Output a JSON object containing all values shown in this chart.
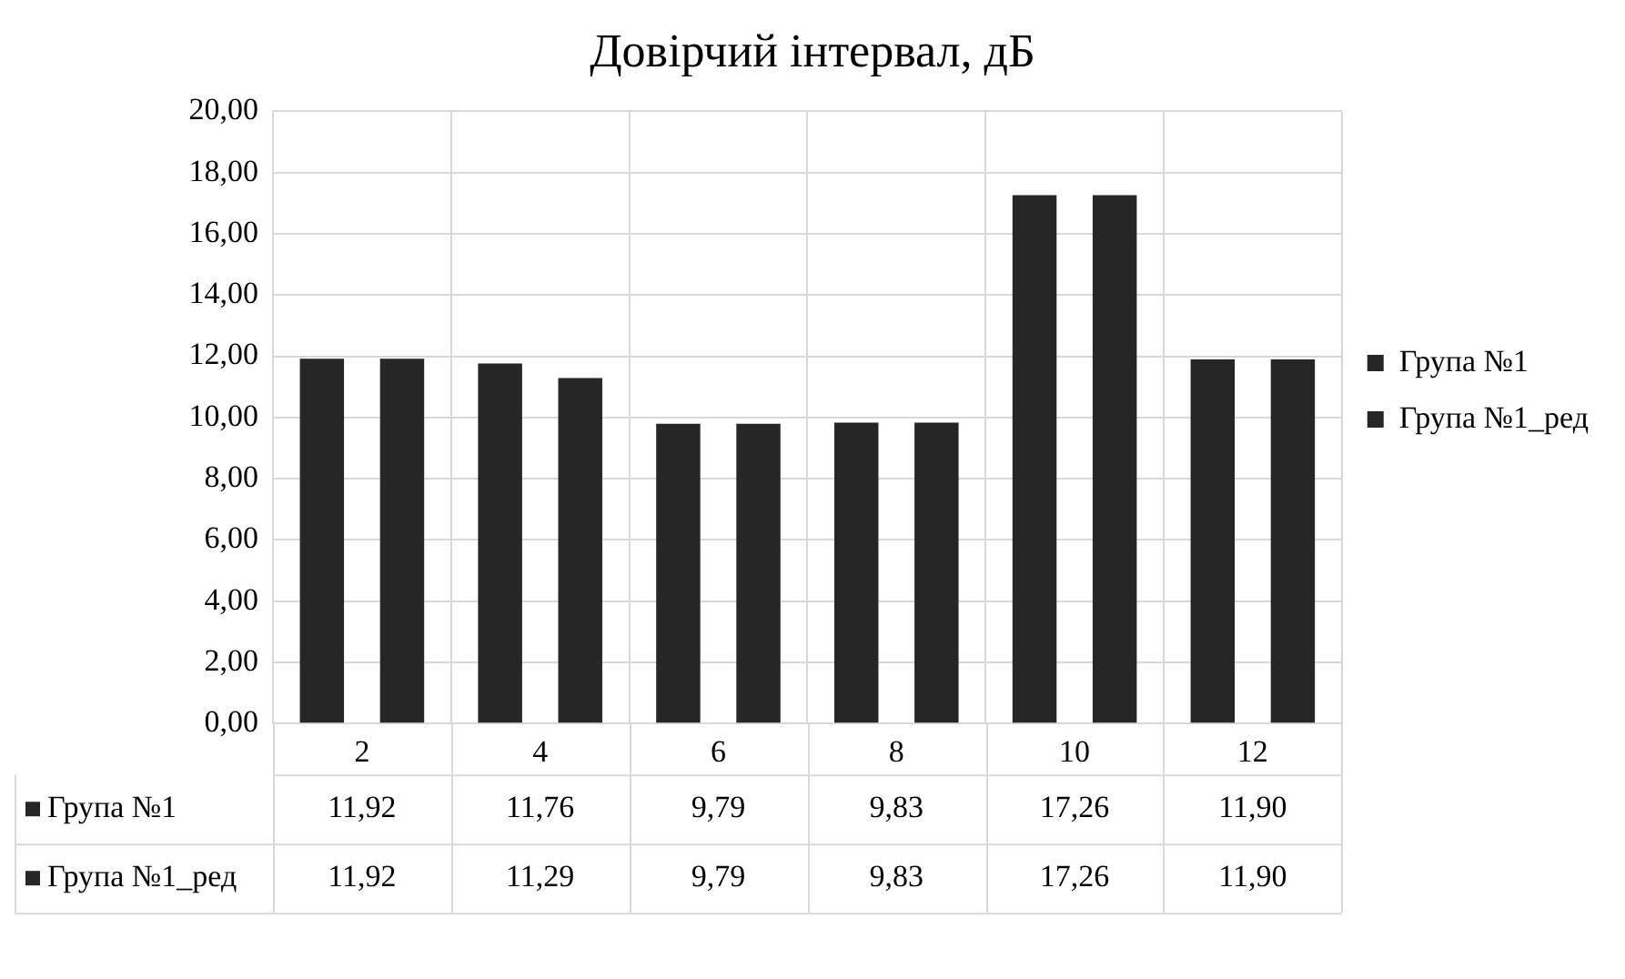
{
  "chart_data": {
    "type": "bar",
    "title": "Довірчий інтервал, дБ",
    "categories": [
      "2",
      "4",
      "6",
      "8",
      "10",
      "12"
    ],
    "series": [
      {
        "name": "Група №1",
        "color": "#262626",
        "values": [
          11.92,
          11.76,
          9.79,
          9.83,
          17.26,
          11.9
        ],
        "value_labels": [
          "11,92",
          "11,76",
          "9,79",
          "9,83",
          "17,26",
          "11,90"
        ]
      },
      {
        "name": "Група №1_ред",
        "color": "#262626",
        "values": [
          11.92,
          11.29,
          9.79,
          9.83,
          17.26,
          11.9
        ],
        "value_labels": [
          "11,92",
          "11,29",
          "9,79",
          "9,83",
          "17,26",
          "11,90"
        ]
      }
    ],
    "ylim": [
      0,
      20
    ],
    "yticks": [
      {
        "value": 0,
        "label": "0,00"
      },
      {
        "value": 2,
        "label": "2,00"
      },
      {
        "value": 4,
        "label": "4,00"
      },
      {
        "value": 6,
        "label": "6,00"
      },
      {
        "value": 8,
        "label": "8,00"
      },
      {
        "value": 10,
        "label": "10,00"
      },
      {
        "value": 12,
        "label": "12,00"
      },
      {
        "value": 14,
        "label": "14,00"
      },
      {
        "value": 16,
        "label": "16,00"
      },
      {
        "value": 18,
        "label": "18,00"
      },
      {
        "value": 20,
        "label": "20,00"
      }
    ],
    "grid": true,
    "legend": "right"
  }
}
